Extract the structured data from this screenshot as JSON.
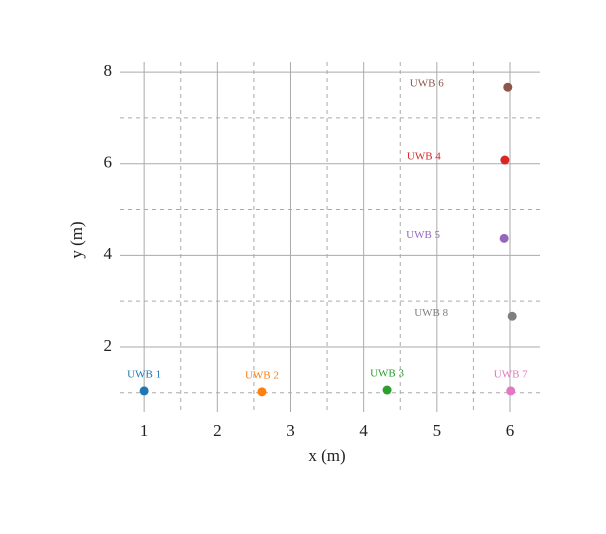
{
  "chart_data": {
    "type": "scatter",
    "xlabel": "x (m)",
    "ylabel": "y (m)",
    "xlim": [
      0.67,
      6.41
    ],
    "ylim": [
      0.58,
      8.22
    ],
    "xticks": [
      1,
      2,
      3,
      4,
      5,
      6
    ],
    "yticks": [
      2,
      4,
      6,
      8
    ],
    "xminorticks": [
      1.5,
      2.5,
      3.5,
      4.5,
      5.5
    ],
    "yminorticks": [
      1,
      3,
      5,
      7
    ],
    "grid": true,
    "series": [
      {
        "name": "UWB 1",
        "color": "#1f77b4",
        "x": [
          1.0
        ],
        "values": [
          1.04
        ]
      },
      {
        "name": "UWB 2",
        "color": "#ff7f0e",
        "x": [
          2.61
        ],
        "values": [
          1.02
        ]
      },
      {
        "name": "UWB 3",
        "color": "#2ca02c",
        "x": [
          4.32
        ],
        "values": [
          1.06
        ]
      },
      {
        "name": "UWB 4",
        "color": "#d62728",
        "x": [
          5.93
        ],
        "values": [
          6.08
        ]
      },
      {
        "name": "UWB 5",
        "color": "#9467bd",
        "x": [
          5.92
        ],
        "values": [
          4.37
        ]
      },
      {
        "name": "UWB 6",
        "color": "#8c564b",
        "x": [
          5.97
        ],
        "values": [
          7.67
        ]
      },
      {
        "name": "UWB 7",
        "color": "#e377c2",
        "x": [
          6.01
        ],
        "values": [
          1.04
        ]
      },
      {
        "name": "UWB 8",
        "color": "#7f7f7f",
        "x": [
          6.03
        ],
        "values": [
          2.67
        ]
      }
    ]
  }
}
